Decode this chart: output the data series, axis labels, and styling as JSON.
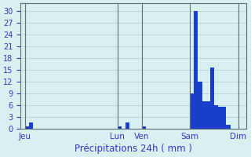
{
  "title": "Précipitations 24h ( mm )",
  "background_color": "#d8f0f0",
  "bar_color": "#1a3fcc",
  "grid_color": "#b0c8c8",
  "axis_label_color": "#3333cc",
  "tick_label_color": "#3333cc",
  "ylim": [
    0,
    32
  ],
  "yticks": [
    0,
    3,
    6,
    9,
    12,
    15,
    18,
    21,
    24,
    27,
    30
  ],
  "day_labels": [
    "Jeu",
    "Lun",
    "Ven",
    "Sam",
    "Dim"
  ],
  "day_positions": [
    1,
    24,
    30,
    42,
    54
  ],
  "bar_values": [
    0,
    0.5,
    1.5,
    0,
    0,
    0,
    0,
    0,
    0,
    0,
    0,
    0,
    0,
    0,
    0,
    0,
    0,
    0,
    0,
    0,
    0,
    0,
    0,
    0,
    0.5,
    0,
    1.5,
    0,
    0,
    0,
    0.5,
    0,
    0,
    0,
    0,
    0,
    0,
    0,
    0,
    0,
    0,
    0,
    9,
    30,
    12,
    7,
    7,
    15.5,
    6,
    5.5,
    5.5,
    1,
    0,
    0,
    0,
    0,
    0
  ]
}
